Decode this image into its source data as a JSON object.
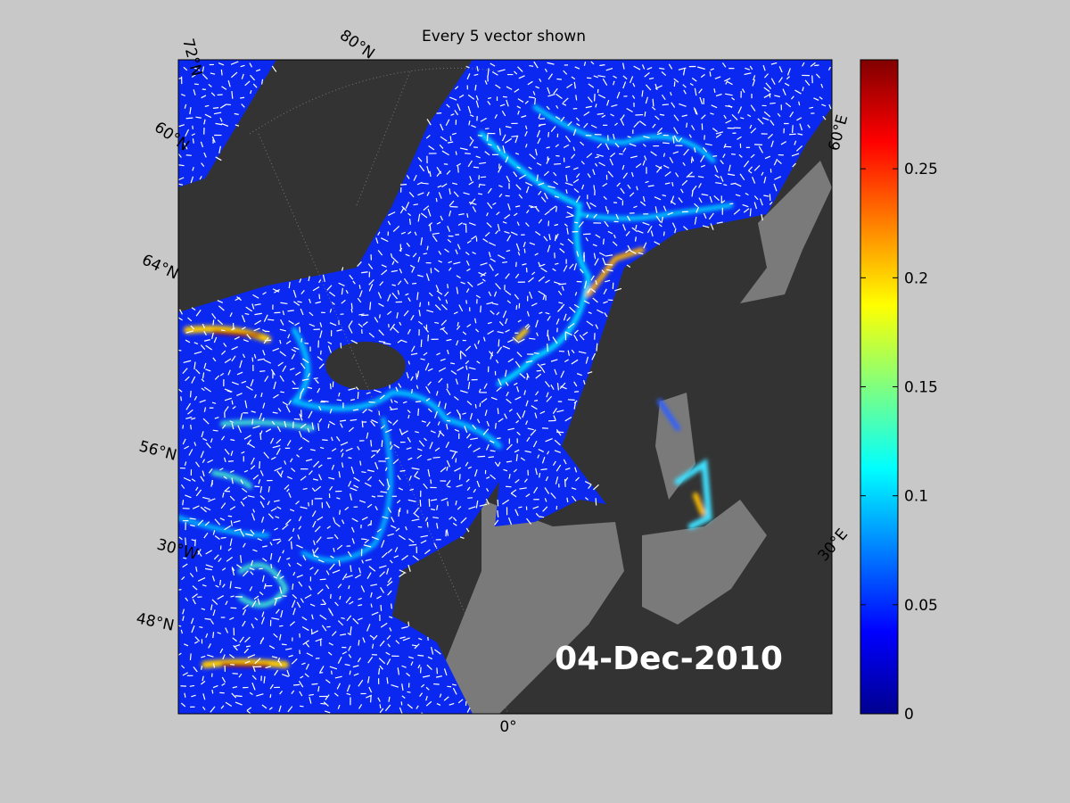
{
  "title": "Every 5 vector shown",
  "date": "04-Dec-2010",
  "graticule_labels": [
    "72°N",
    "80°N",
    "60°N",
    "64°N",
    "56°N",
    "30°W",
    "48°N",
    "0°",
    "30°E",
    "60°E"
  ],
  "colorbar": {
    "range": [
      0,
      0.3
    ],
    "ticks": [
      0,
      0.05,
      0.1,
      0.15,
      0.2,
      0.25
    ],
    "colormap": "jet"
  }
}
